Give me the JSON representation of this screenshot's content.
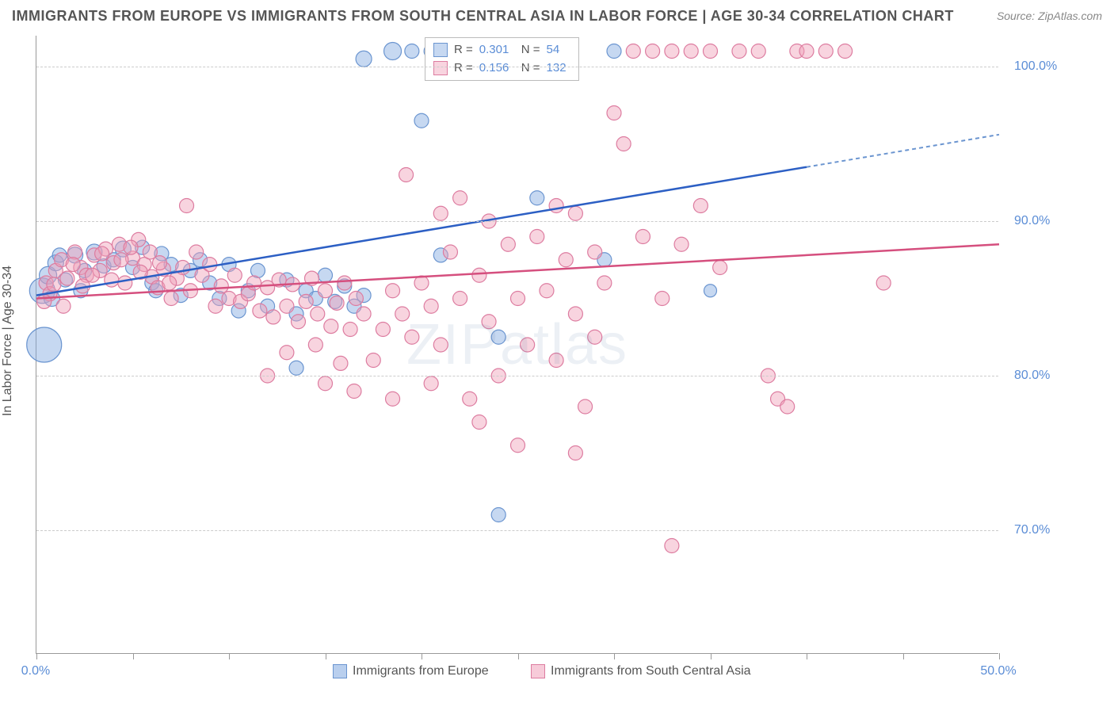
{
  "title": "IMMIGRANTS FROM EUROPE VS IMMIGRANTS FROM SOUTH CENTRAL ASIA IN LABOR FORCE | AGE 30-34 CORRELATION CHART",
  "source": "Source: ZipAtlas.com",
  "watermark": "ZIPatlas",
  "y_axis_label": "In Labor Force | Age 30-34",
  "chart": {
    "type": "scatter",
    "x_domain": [
      0,
      50
    ],
    "y_domain": [
      62,
      102
    ],
    "x_ticks": [
      0,
      5,
      10,
      15,
      20,
      25,
      30,
      35,
      40,
      45,
      50
    ],
    "x_tick_labels": {
      "0": "0.0%",
      "50": "50.0%"
    },
    "y_gridlines": [
      70,
      80,
      90,
      100
    ],
    "y_tick_labels": {
      "70": "70.0%",
      "80": "80.0%",
      "90": "90.0%",
      "100": "100.0%"
    },
    "background_color": "#ffffff",
    "grid_color": "#cccccc",
    "axis_color": "#999999",
    "tick_label_color": "#5b8dd6",
    "series": [
      {
        "name": "Immigrants from Europe",
        "fill": "rgba(128,168,224,0.45)",
        "stroke": "#6b95d0",
        "trend_color": "#2c5fc4",
        "trend_dash_color": "#6b95d0",
        "r_value": "0.301",
        "n_value": "54",
        "trend": {
          "x1": 0,
          "y1": 85.2,
          "x2": 40,
          "y2": 93.5,
          "x2_dash": 50,
          "y2_dash": 95.6
        },
        "points": [
          {
            "x": 0.3,
            "y": 85.5,
            "r": 16
          },
          {
            "x": 0.4,
            "y": 82.0,
            "r": 22
          },
          {
            "x": 0.6,
            "y": 86.5,
            "r": 11
          },
          {
            "x": 1.0,
            "y": 87.3,
            "r": 10
          },
          {
            "x": 1.5,
            "y": 86.2,
            "r": 9
          },
          {
            "x": 2.0,
            "y": 87.8,
            "r": 10
          },
          {
            "x": 2.5,
            "y": 86.8,
            "r": 9
          },
          {
            "x": 3.0,
            "y": 88.0,
            "r": 10
          },
          {
            "x": 3.5,
            "y": 87.1,
            "r": 9
          },
          {
            "x": 4.0,
            "y": 87.5,
            "r": 9
          },
          {
            "x": 4.5,
            "y": 88.2,
            "r": 10
          },
          {
            "x": 5.0,
            "y": 87.0,
            "r": 9
          },
          {
            "x": 5.5,
            "y": 88.3,
            "r": 9
          },
          {
            "x": 6.0,
            "y": 86.0,
            "r": 9
          },
          {
            "x": 6.5,
            "y": 87.9,
            "r": 9
          },
          {
            "x": 7.0,
            "y": 87.2,
            "r": 9
          },
          {
            "x": 7.5,
            "y": 85.2,
            "r": 9
          },
          {
            "x": 8.0,
            "y": 86.8,
            "r": 9
          },
          {
            "x": 8.5,
            "y": 87.5,
            "r": 9
          },
          {
            "x": 9.0,
            "y": 86.0,
            "r": 9
          },
          {
            "x": 9.5,
            "y": 85.0,
            "r": 9
          },
          {
            "x": 10.0,
            "y": 87.2,
            "r": 9
          },
          {
            "x": 10.5,
            "y": 84.2,
            "r": 9
          },
          {
            "x": 11.0,
            "y": 85.5,
            "r": 9
          },
          {
            "x": 11.5,
            "y": 86.8,
            "r": 9
          },
          {
            "x": 12.0,
            "y": 84.5,
            "r": 9
          },
          {
            "x": 13.0,
            "y": 86.2,
            "r": 9
          },
          {
            "x": 13.5,
            "y": 84.0,
            "r": 9
          },
          {
            "x": 14.0,
            "y": 85.5,
            "r": 9
          },
          {
            "x": 14.5,
            "y": 85.0,
            "r": 9
          },
          {
            "x": 15.0,
            "y": 86.5,
            "r": 9
          },
          {
            "x": 15.5,
            "y": 84.8,
            "r": 9
          },
          {
            "x": 16.0,
            "y": 85.8,
            "r": 9
          },
          {
            "x": 16.5,
            "y": 84.5,
            "r": 9
          },
          {
            "x": 17.0,
            "y": 85.2,
            "r": 9
          },
          {
            "x": 13.5,
            "y": 80.5,
            "r": 9
          },
          {
            "x": 17.0,
            "y": 100.5,
            "r": 10
          },
          {
            "x": 18.5,
            "y": 101.0,
            "r": 11
          },
          {
            "x": 19.5,
            "y": 101.0,
            "r": 9
          },
          {
            "x": 20.0,
            "y": 96.5,
            "r": 9
          },
          {
            "x": 20.5,
            "y": 101.0,
            "r": 9
          },
          {
            "x": 21.0,
            "y": 87.8,
            "r": 9
          },
          {
            "x": 22.5,
            "y": 101.0,
            "r": 9
          },
          {
            "x": 23.0,
            "y": 101.0,
            "r": 8
          },
          {
            "x": 24.0,
            "y": 82.5,
            "r": 9
          },
          {
            "x": 24.0,
            "y": 71.0,
            "r": 9
          },
          {
            "x": 26.0,
            "y": 91.5,
            "r": 9
          },
          {
            "x": 29.5,
            "y": 87.5,
            "r": 9
          },
          {
            "x": 30.0,
            "y": 101.0,
            "r": 9
          },
          {
            "x": 35.0,
            "y": 85.5,
            "r": 8
          },
          {
            "x": 0.8,
            "y": 85.0,
            "r": 10
          },
          {
            "x": 1.2,
            "y": 87.8,
            "r": 9
          },
          {
            "x": 2.3,
            "y": 85.5,
            "r": 9
          },
          {
            "x": 6.2,
            "y": 85.5,
            "r": 9
          }
        ]
      },
      {
        "name": "Immigrants from South Central Asia",
        "fill": "rgba(240,160,185,0.45)",
        "stroke": "#dd7ca0",
        "trend_color": "#d54f7e",
        "r_value": "0.156",
        "n_value": "132",
        "trend": {
          "x1": 0,
          "y1": 85.0,
          "x2": 50,
          "y2": 88.5
        },
        "points": [
          {
            "x": 0.5,
            "y": 86.0,
            "r": 9
          },
          {
            "x": 0.7,
            "y": 85.3,
            "r": 9
          },
          {
            "x": 1.0,
            "y": 86.8,
            "r": 9
          },
          {
            "x": 1.3,
            "y": 87.5,
            "r": 9
          },
          {
            "x": 1.6,
            "y": 86.3,
            "r": 9
          },
          {
            "x": 2.0,
            "y": 88.0,
            "r": 9
          },
          {
            "x": 2.3,
            "y": 87.0,
            "r": 9
          },
          {
            "x": 2.6,
            "y": 86.5,
            "r": 9
          },
          {
            "x": 3.0,
            "y": 87.8,
            "r": 9
          },
          {
            "x": 3.3,
            "y": 86.8,
            "r": 9
          },
          {
            "x": 3.6,
            "y": 88.2,
            "r": 9
          },
          {
            "x": 4.0,
            "y": 87.3,
            "r": 9
          },
          {
            "x": 4.3,
            "y": 88.5,
            "r": 9
          },
          {
            "x": 4.6,
            "y": 86.0,
            "r": 9
          },
          {
            "x": 5.0,
            "y": 87.6,
            "r": 9
          },
          {
            "x": 5.3,
            "y": 88.8,
            "r": 9
          },
          {
            "x": 5.6,
            "y": 87.2,
            "r": 9
          },
          {
            "x": 6.0,
            "y": 86.4,
            "r": 9
          },
          {
            "x": 6.3,
            "y": 85.7,
            "r": 9
          },
          {
            "x": 6.6,
            "y": 86.9,
            "r": 9
          },
          {
            "x": 7.0,
            "y": 85.0,
            "r": 9
          },
          {
            "x": 7.3,
            "y": 86.3,
            "r": 9
          },
          {
            "x": 7.6,
            "y": 87.0,
            "r": 9
          },
          {
            "x": 8.0,
            "y": 85.5,
            "r": 9
          },
          {
            "x": 8.3,
            "y": 88.0,
            "r": 9
          },
          {
            "x": 8.6,
            "y": 86.5,
            "r": 9
          },
          {
            "x": 9.0,
            "y": 87.2,
            "r": 9
          },
          {
            "x": 9.3,
            "y": 84.5,
            "r": 9
          },
          {
            "x": 9.6,
            "y": 85.8,
            "r": 9
          },
          {
            "x": 10.0,
            "y": 85.0,
            "r": 9
          },
          {
            "x": 10.3,
            "y": 86.5,
            "r": 9
          },
          {
            "x": 10.6,
            "y": 84.8,
            "r": 9
          },
          {
            "x": 11.0,
            "y": 85.3,
            "r": 9
          },
          {
            "x": 11.3,
            "y": 86.0,
            "r": 9
          },
          {
            "x": 11.6,
            "y": 84.2,
            "r": 9
          },
          {
            "x": 12.0,
            "y": 85.7,
            "r": 9
          },
          {
            "x": 12.3,
            "y": 83.8,
            "r": 9
          },
          {
            "x": 12.6,
            "y": 86.2,
            "r": 9
          },
          {
            "x": 13.0,
            "y": 84.5,
            "r": 9
          },
          {
            "x": 13.3,
            "y": 85.9,
            "r": 9
          },
          {
            "x": 13.6,
            "y": 83.5,
            "r": 9
          },
          {
            "x": 14.0,
            "y": 84.8,
            "r": 9
          },
          {
            "x": 14.3,
            "y": 86.3,
            "r": 9
          },
          {
            "x": 14.6,
            "y": 84.0,
            "r": 9
          },
          {
            "x": 15.0,
            "y": 85.5,
            "r": 9
          },
          {
            "x": 15.3,
            "y": 83.2,
            "r": 9
          },
          {
            "x": 15.6,
            "y": 84.7,
            "r": 9
          },
          {
            "x": 16.0,
            "y": 86.0,
            "r": 9
          },
          {
            "x": 16.3,
            "y": 83.0,
            "r": 9
          },
          {
            "x": 16.6,
            "y": 85.0,
            "r": 9
          },
          {
            "x": 17.0,
            "y": 84.0,
            "r": 9
          },
          {
            "x": 7.8,
            "y": 91.0,
            "r": 9
          },
          {
            "x": 12.0,
            "y": 80.0,
            "r": 9
          },
          {
            "x": 13.0,
            "y": 81.5,
            "r": 9
          },
          {
            "x": 14.5,
            "y": 82.0,
            "r": 9
          },
          {
            "x": 15.0,
            "y": 79.5,
            "r": 9
          },
          {
            "x": 15.8,
            "y": 80.8,
            "r": 9
          },
          {
            "x": 16.5,
            "y": 79.0,
            "r": 9
          },
          {
            "x": 17.5,
            "y": 81.0,
            "r": 9
          },
          {
            "x": 18.0,
            "y": 83.0,
            "r": 9
          },
          {
            "x": 18.5,
            "y": 85.5,
            "r": 9
          },
          {
            "x": 19.0,
            "y": 84.0,
            "r": 9
          },
          {
            "x": 19.2,
            "y": 93.0,
            "r": 9
          },
          {
            "x": 19.5,
            "y": 82.5,
            "r": 9
          },
          {
            "x": 20.0,
            "y": 86.0,
            "r": 9
          },
          {
            "x": 20.5,
            "y": 84.5,
            "r": 9
          },
          {
            "x": 21.0,
            "y": 90.5,
            "r": 9
          },
          {
            "x": 21.0,
            "y": 82.0,
            "r": 9
          },
          {
            "x": 21.5,
            "y": 88.0,
            "r": 9
          },
          {
            "x": 22.0,
            "y": 85.0,
            "r": 9
          },
          {
            "x": 22.0,
            "y": 91.5,
            "r": 9
          },
          {
            "x": 22.5,
            "y": 78.5,
            "r": 9
          },
          {
            "x": 23.0,
            "y": 86.5,
            "r": 9
          },
          {
            "x": 23.5,
            "y": 83.5,
            "r": 9
          },
          {
            "x": 23.5,
            "y": 90.0,
            "r": 9
          },
          {
            "x": 24.0,
            "y": 80.0,
            "r": 9
          },
          {
            "x": 24.5,
            "y": 88.5,
            "r": 9
          },
          {
            "x": 25.0,
            "y": 85.0,
            "r": 9
          },
          {
            "x": 25.0,
            "y": 75.5,
            "r": 9
          },
          {
            "x": 25.5,
            "y": 82.0,
            "r": 9
          },
          {
            "x": 26.0,
            "y": 89.0,
            "r": 9
          },
          {
            "x": 26.5,
            "y": 85.5,
            "r": 9
          },
          {
            "x": 27.0,
            "y": 81.0,
            "r": 9
          },
          {
            "x": 27.0,
            "y": 91.0,
            "r": 9
          },
          {
            "x": 27.5,
            "y": 87.5,
            "r": 9
          },
          {
            "x": 28.0,
            "y": 84.0,
            "r": 9
          },
          {
            "x": 28.0,
            "y": 90.5,
            "r": 9
          },
          {
            "x": 28.5,
            "y": 78.0,
            "r": 9
          },
          {
            "x": 29.0,
            "y": 88.0,
            "r": 9
          },
          {
            "x": 29.0,
            "y": 82.5,
            "r": 9
          },
          {
            "x": 29.5,
            "y": 86.0,
            "r": 9
          },
          {
            "x": 30.0,
            "y": 97.0,
            "r": 9
          },
          {
            "x": 30.5,
            "y": 95.0,
            "r": 9
          },
          {
            "x": 31.0,
            "y": 101.0,
            "r": 9
          },
          {
            "x": 31.5,
            "y": 89.0,
            "r": 9
          },
          {
            "x": 32.0,
            "y": 101.0,
            "r": 9
          },
          {
            "x": 32.5,
            "y": 85.0,
            "r": 9
          },
          {
            "x": 33.0,
            "y": 101.0,
            "r": 9
          },
          {
            "x": 33.5,
            "y": 88.5,
            "r": 9
          },
          {
            "x": 34.0,
            "y": 101.0,
            "r": 9
          },
          {
            "x": 34.5,
            "y": 91.0,
            "r": 9
          },
          {
            "x": 35.0,
            "y": 101.0,
            "r": 9
          },
          {
            "x": 35.5,
            "y": 87.0,
            "r": 9
          },
          {
            "x": 36.5,
            "y": 101.0,
            "r": 9
          },
          {
            "x": 37.5,
            "y": 101.0,
            "r": 9
          },
          {
            "x": 38.0,
            "y": 80.0,
            "r": 9
          },
          {
            "x": 38.5,
            "y": 78.5,
            "r": 9
          },
          {
            "x": 39.0,
            "y": 78.0,
            "r": 9
          },
          {
            "x": 39.5,
            "y": 101.0,
            "r": 9
          },
          {
            "x": 40.0,
            "y": 101.0,
            "r": 9
          },
          {
            "x": 41.0,
            "y": 101.0,
            "r": 9
          },
          {
            "x": 42.0,
            "y": 101.0,
            "r": 9
          },
          {
            "x": 44.0,
            "y": 86.0,
            "r": 9
          },
          {
            "x": 33.0,
            "y": 69.0,
            "r": 9
          },
          {
            "x": 23.0,
            "y": 77.0,
            "r": 9
          },
          {
            "x": 18.5,
            "y": 78.5,
            "r": 9
          },
          {
            "x": 20.5,
            "y": 79.5,
            "r": 9
          },
          {
            "x": 28.0,
            "y": 75.0,
            "r": 9
          },
          {
            "x": 0.4,
            "y": 84.8,
            "r": 9
          },
          {
            "x": 0.9,
            "y": 85.9,
            "r": 9
          },
          {
            "x": 1.4,
            "y": 84.5,
            "r": 9
          },
          {
            "x": 1.9,
            "y": 87.2,
            "r": 9
          },
          {
            "x": 2.4,
            "y": 85.8,
            "r": 9
          },
          {
            "x": 2.9,
            "y": 86.5,
            "r": 9
          },
          {
            "x": 3.4,
            "y": 87.9,
            "r": 9
          },
          {
            "x": 3.9,
            "y": 86.2,
            "r": 9
          },
          {
            "x": 4.4,
            "y": 87.5,
            "r": 9
          },
          {
            "x": 4.9,
            "y": 88.3,
            "r": 9
          },
          {
            "x": 5.4,
            "y": 86.7,
            "r": 9
          },
          {
            "x": 5.9,
            "y": 88.0,
            "r": 9
          },
          {
            "x": 6.4,
            "y": 87.3,
            "r": 9
          },
          {
            "x": 6.9,
            "y": 86.0,
            "r": 9
          }
        ]
      }
    ]
  },
  "legend_bottom": [
    {
      "label": "Immigrants from Europe",
      "fill": "rgba(128,168,224,0.55)",
      "stroke": "#6b95d0"
    },
    {
      "label": "Immigrants from South Central Asia",
      "fill": "rgba(240,160,185,0.55)",
      "stroke": "#dd7ca0"
    }
  ]
}
